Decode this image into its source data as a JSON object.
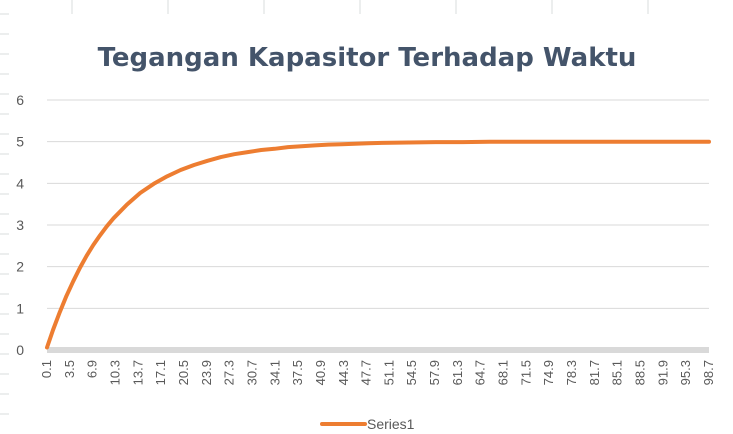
{
  "colors": {
    "series": "#ed7d31",
    "title": "#44546a",
    "gridline": "#d9d9d9",
    "axis_band": "#d9d9d9",
    "text": "#595959",
    "sheet_grid": "#dadcdd"
  },
  "chart_data": {
    "type": "line",
    "title": "Tegangan Kapasitor Terhadap Waktu",
    "xlabel": "",
    "ylabel": "",
    "ylim": [
      0,
      6
    ],
    "yticks": [
      "0",
      "1",
      "2",
      "3",
      "4",
      "5",
      "6"
    ],
    "grid": true,
    "legend_position": "bottom",
    "categories": [
      "0.1",
      "3.5",
      "6.9",
      "10.3",
      "13.7",
      "17.1",
      "20.5",
      "23.9",
      "27.3",
      "30.7",
      "34.1",
      "37.5",
      "40.9",
      "44.3",
      "47.7",
      "51.1",
      "54.5",
      "57.9",
      "61.3",
      "64.7",
      "68.1",
      "71.5",
      "74.9",
      "78.3",
      "81.7",
      "85.1",
      "88.5",
      "91.9",
      "95.3",
      "98.7"
    ],
    "series": [
      {
        "name": "Series1",
        "x": [
          0.1,
          1,
          2,
          3,
          4,
          5,
          6,
          7,
          8,
          9,
          10,
          12,
          14,
          16,
          18,
          20,
          22,
          24,
          26,
          28,
          30,
          32,
          34,
          36,
          38,
          40,
          42,
          44,
          46,
          48,
          50,
          54,
          58,
          62,
          66,
          70,
          74,
          78,
          82,
          86,
          90,
          94,
          98.7
        ],
        "values": [
          0.06,
          0.48,
          0.91,
          1.3,
          1.65,
          1.97,
          2.26,
          2.52,
          2.75,
          2.97,
          3.16,
          3.49,
          3.77,
          3.99,
          4.17,
          4.32,
          4.44,
          4.54,
          4.63,
          4.7,
          4.75,
          4.8,
          4.83,
          4.87,
          4.89,
          4.91,
          4.93,
          4.94,
          4.95,
          4.96,
          4.97,
          4.98,
          4.99,
          4.99,
          5.0,
          5.0,
          5.0,
          5.0,
          5.0,
          5.0,
          5.0,
          5.0,
          5.0
        ]
      }
    ]
  }
}
